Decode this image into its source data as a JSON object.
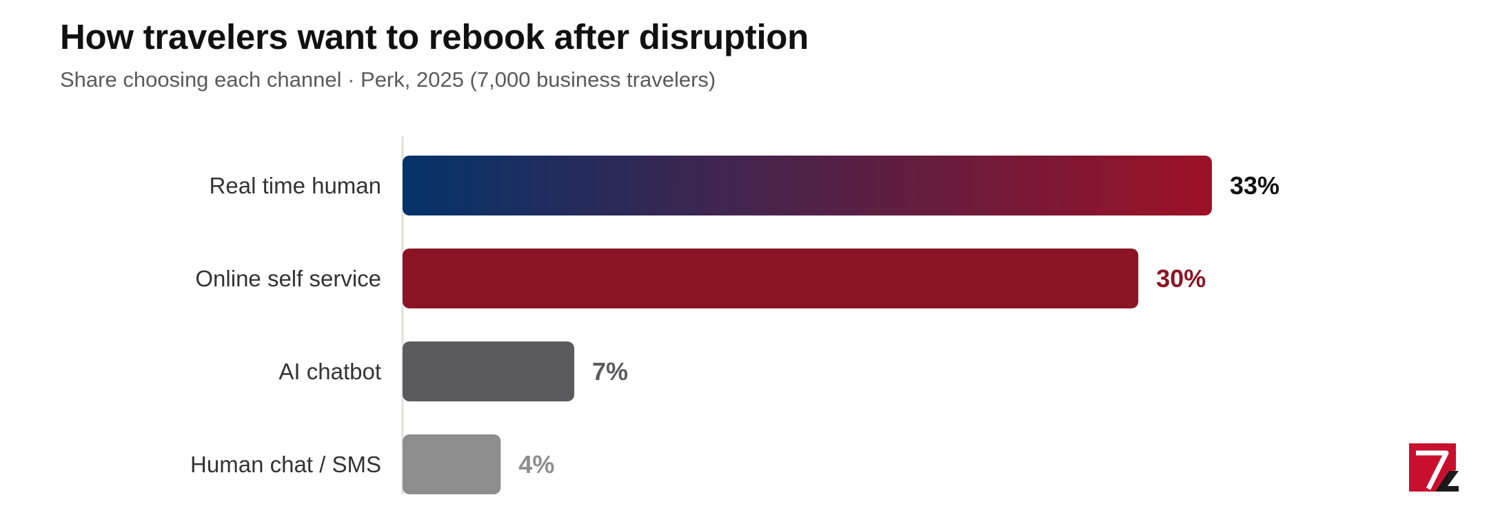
{
  "chart_data": {
    "type": "bar",
    "orientation": "horizontal",
    "title": "How travelers want to rebook after disruption",
    "subtitle": "Share choosing each channel · Perk, 2025 (7,000 business travelers)",
    "categories": [
      "Real time human",
      "Online self service",
      "AI chatbot",
      "Human chat / SMS"
    ],
    "values": [
      33,
      30,
      7,
      4
    ],
    "value_labels": [
      "33%",
      "30%",
      "7%",
      "4%"
    ],
    "xlim": [
      0,
      33
    ],
    "grid": false,
    "legend": "none",
    "colors": {
      "bar_gradient_start": "#04336a",
      "bar_gradient_end": "#9c1126",
      "bars": [
        "gradient",
        "#8c1525",
        "#5b5b5f",
        "#8e8e8e"
      ],
      "value_labels": [
        "#111111",
        "#8c1525",
        "#5b5b5f",
        "#8e8e8e"
      ],
      "axis": "#e2e0dc"
    }
  },
  "logo": {
    "icon": "brand-logo-icon",
    "color_red": "#c8102e",
    "color_dark": "#1a1a1a"
  }
}
